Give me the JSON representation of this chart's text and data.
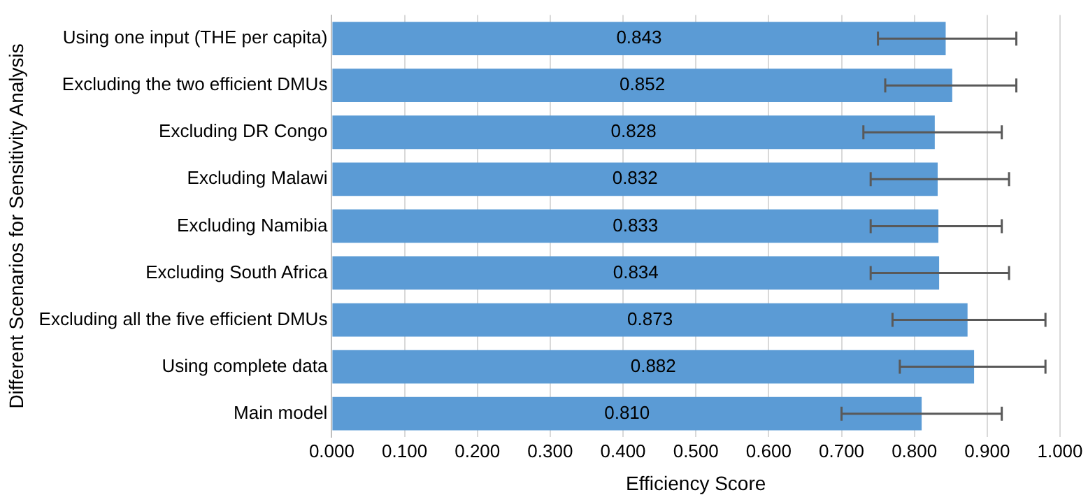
{
  "chart_data": {
    "type": "bar",
    "orientation": "horizontal",
    "xlabel": "Efficiency Score",
    "ylabel": "Different Scenarios for Sensitivity Analysis",
    "categories": [
      "Using one input (THE per capita)",
      "Excluding the two efficient DMUs",
      "Excluding DR Congo",
      "Excluding Malawi",
      "Excluding Namibia",
      "Excluding South Africa",
      "Excluding all the five efficient DMUs",
      "Using complete data",
      "Main model"
    ],
    "values": [
      0.843,
      0.852,
      0.828,
      0.832,
      0.833,
      0.834,
      0.873,
      0.882,
      0.81
    ],
    "value_labels": [
      "0.843",
      "0.852",
      "0.828",
      "0.832",
      "0.833",
      "0.834",
      "0.873",
      "0.882",
      "0.810"
    ],
    "errors": [
      [
        0.75,
        0.94
      ],
      [
        0.76,
        0.94
      ],
      [
        0.73,
        0.92
      ],
      [
        0.74,
        0.93
      ],
      [
        0.74,
        0.92
      ],
      [
        0.74,
        0.93
      ],
      [
        0.77,
        0.98
      ],
      [
        0.78,
        0.98
      ],
      [
        0.7,
        0.92
      ]
    ],
    "color": "#5b9bd5",
    "xlim": [
      0,
      1
    ],
    "xticks": [
      {
        "value": 0,
        "label": "0.000"
      },
      {
        "value": 0.1,
        "label": "0.100"
      },
      {
        "value": 0.2,
        "label": "0.200"
      },
      {
        "value": 0.3,
        "label": "0.300"
      },
      {
        "value": 0.4,
        "label": "0.400"
      },
      {
        "value": 0.5,
        "label": "0.500"
      },
      {
        "value": 0.6,
        "label": "0.600"
      },
      {
        "value": 0.7,
        "label": "0.700"
      },
      {
        "value": 0.8,
        "label": "0.800"
      },
      {
        "value": 0.9,
        "label": "0.900"
      },
      {
        "value": 1,
        "label": "1.000"
      }
    ],
    "grid": "x",
    "legend": false
  }
}
